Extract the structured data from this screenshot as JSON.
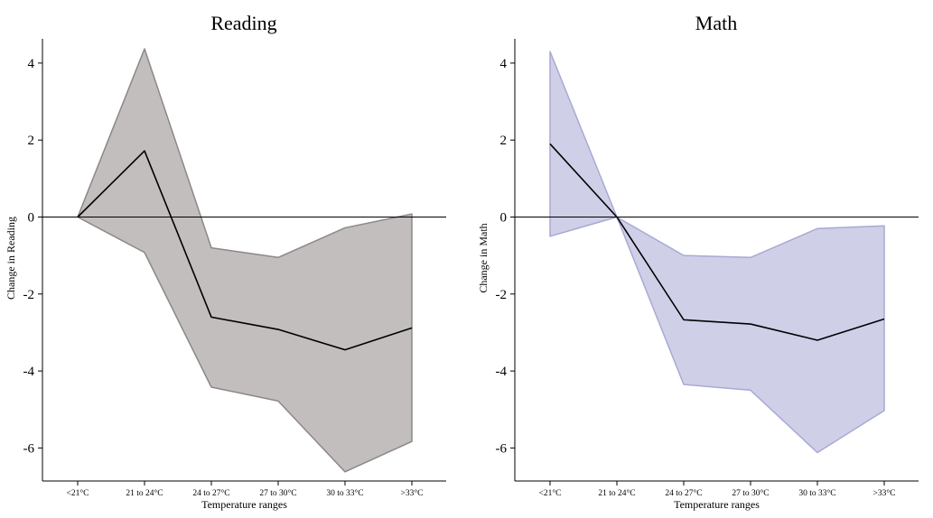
{
  "chart_data": [
    {
      "type": "area",
      "title": "Reading",
      "xlabel": "Temperature ranges",
      "ylabel": "Change in Reading",
      "categories": [
        "<21°C",
        "21 to 24°C",
        "24 to 27°C",
        "27 to 30°C",
        "30 to 33°C",
        ">33°C"
      ],
      "yticks": [
        4,
        2,
        0,
        -2,
        -4,
        -6
      ],
      "ylim": [
        -6.9,
        4.6
      ],
      "reference_line": 0,
      "grid": false,
      "series": [
        {
          "values": [
            0,
            1.72,
            -2.6,
            -2.92,
            -3.45,
            -2.88
          ]
        }
      ],
      "ci_lower": [
        0,
        -0.92,
        -4.42,
        -4.78,
        -6.62,
        -5.83
      ],
      "ci_upper": [
        0,
        4.37,
        -0.8,
        -1.05,
        -0.28,
        0.08
      ],
      "fill_color": "#c2bebd",
      "band_edge_color": "#8c8887",
      "line_color": "#000000"
    },
    {
      "type": "area",
      "title": "Math",
      "xlabel": "Temperature ranges",
      "ylabel": "Change in Math",
      "categories": [
        "<21°C",
        "21 to 24°C",
        "24 to 27°C",
        "27 to 30°C",
        "30 to 33°C",
        ">33°C"
      ],
      "yticks": [
        4,
        2,
        0,
        -2,
        -4,
        -6
      ],
      "ylim": [
        -6.9,
        4.6
      ],
      "reference_line": 0,
      "grid": false,
      "series": [
        {
          "values": [
            1.9,
            0,
            -2.67,
            -2.78,
            -3.2,
            -2.65
          ]
        }
      ],
      "ci_lower": [
        -0.5,
        0,
        -4.35,
        -4.5,
        -6.12,
        -5.03
      ],
      "ci_upper": [
        4.3,
        0,
        -1.0,
        -1.05,
        -0.3,
        -0.23
      ],
      "fill_color": "#cfcfe8",
      "band_edge_color": "#a9a9d4",
      "line_color": "#000000"
    }
  ]
}
